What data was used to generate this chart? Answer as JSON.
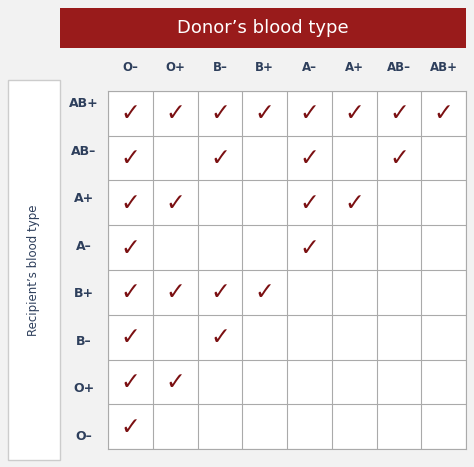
{
  "title": "Donor’s blood type",
  "donor_types": [
    "O–",
    "O+",
    "B–",
    "B+",
    "A–",
    "A+",
    "AB–",
    "AB+"
  ],
  "recipient_types": [
    "AB+",
    "AB–",
    "A+",
    "A–",
    "B+",
    "B–",
    "O+",
    "O–"
  ],
  "ylabel": "Recipient’s blood type",
  "compatibility": [
    [
      1,
      1,
      1,
      1,
      1,
      1,
      1,
      1
    ],
    [
      1,
      0,
      1,
      0,
      1,
      0,
      1,
      0
    ],
    [
      1,
      1,
      0,
      0,
      1,
      1,
      0,
      0
    ],
    [
      1,
      0,
      0,
      0,
      1,
      0,
      0,
      0
    ],
    [
      1,
      1,
      1,
      1,
      0,
      0,
      0,
      0
    ],
    [
      1,
      0,
      1,
      0,
      0,
      0,
      0,
      0
    ],
    [
      1,
      1,
      0,
      0,
      0,
      0,
      0,
      0
    ],
    [
      1,
      0,
      0,
      0,
      0,
      0,
      0,
      0
    ]
  ],
  "title_bg_color": "#991B1B",
  "title_text_color": "#FFFFFF",
  "header_text_color": "#2E3F5C",
  "ylabel_color": "#2E3F5C",
  "check_color": "#7B1012",
  "grid_color": "#AAAAAA",
  "bg_color": "#FFFFFF",
  "outer_bg_color": "#F2F2F2",
  "label_box_border": "#CCCCCC"
}
